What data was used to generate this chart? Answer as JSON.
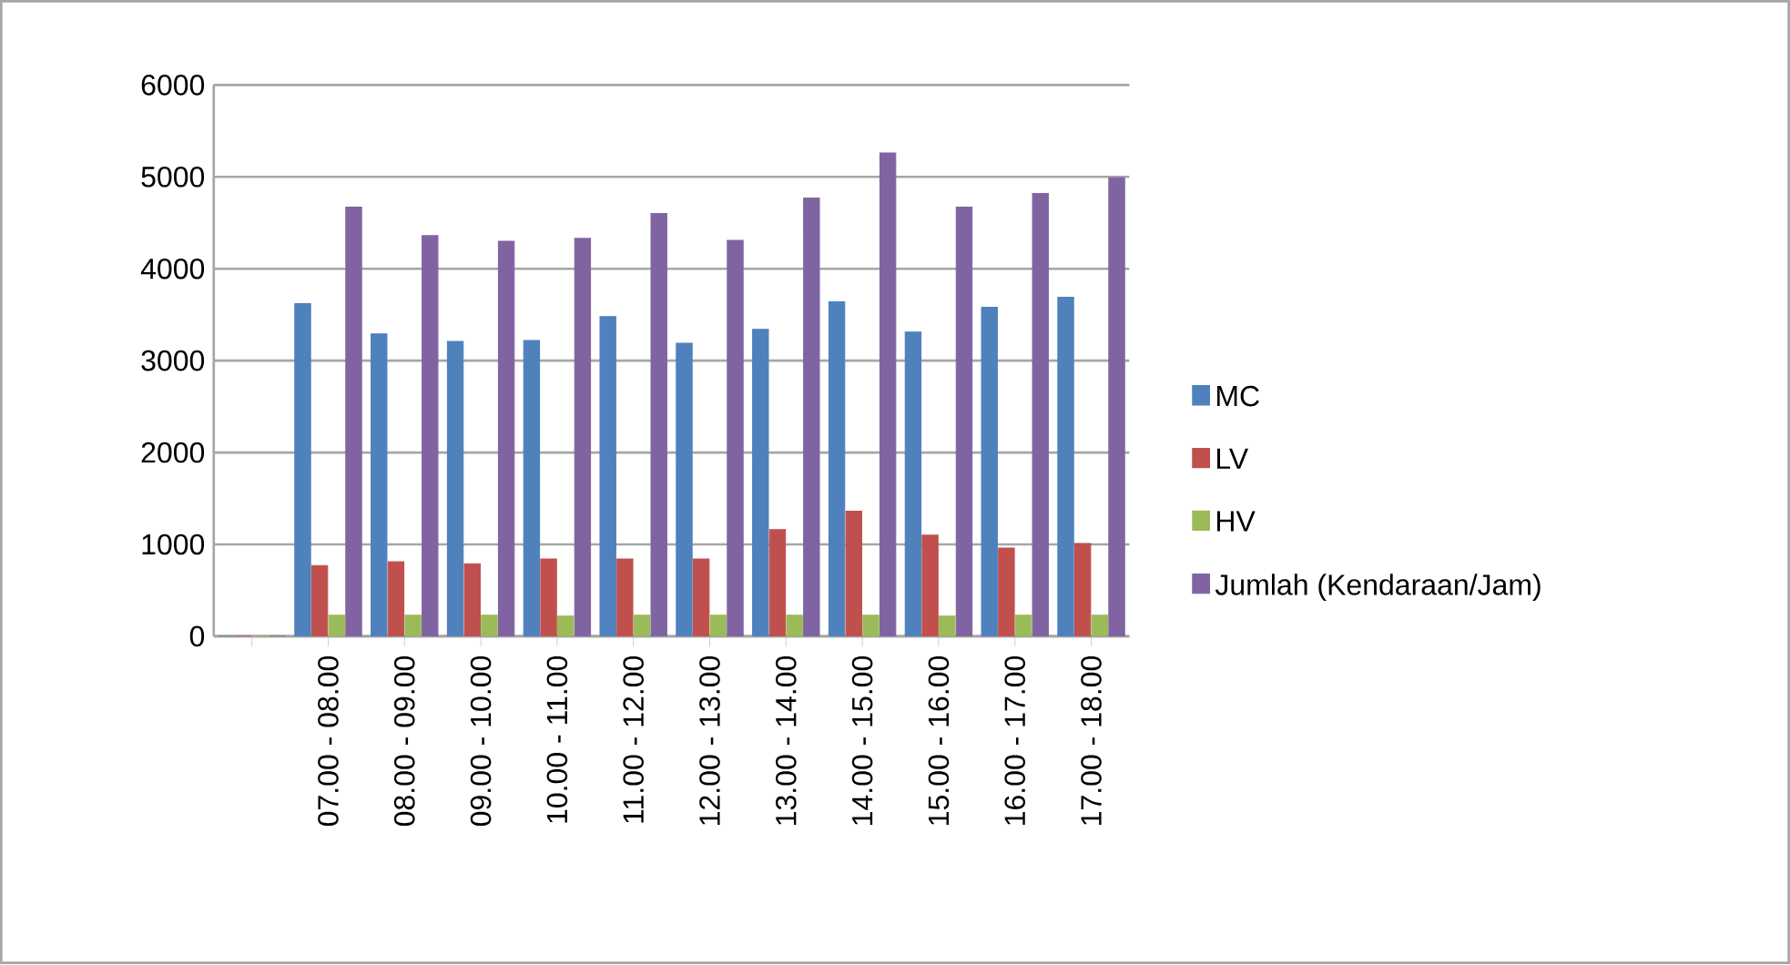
{
  "chart_data": {
    "type": "bar",
    "categories": [
      null,
      "07.00 - 08.00",
      "08.00 - 09.00",
      "09.00 - 10.00",
      "10.00 - 11.00",
      "11.00 - 12.00",
      "12.00 - 13.00",
      "13.00 - 14.00",
      "14.00 - 15.00",
      "15.00 - 16.00",
      "16.00 - 17.00",
      "17.00 - 18.00"
    ],
    "series": [
      {
        "name": "MC",
        "color": "#4f81bd",
        "values": [
          0,
          3620,
          3290,
          3210,
          3220,
          3480,
          3190,
          3340,
          3640,
          3310,
          3580,
          3690
        ]
      },
      {
        "name": "LV",
        "color": "#c0504d",
        "values": [
          0,
          770,
          810,
          790,
          840,
          840,
          840,
          1160,
          1360,
          1100,
          960,
          1010
        ]
      },
      {
        "name": "HV",
        "color": "#9bbb59",
        "values": [
          0,
          230,
          230,
          230,
          220,
          230,
          230,
          230,
          230,
          220,
          230,
          230
        ]
      },
      {
        "name": "Jumlah (Kendaraan/Jam)",
        "color": "#8064a2",
        "values": [
          0,
          4670,
          4360,
          4300,
          4330,
          4600,
          4310,
          4770,
          5260,
          4670,
          4820,
          4990
        ]
      }
    ],
    "ylim": [
      0,
      6000
    ],
    "yticks": [
      0,
      1000,
      2000,
      3000,
      4000,
      5000,
      6000
    ],
    "grid": "y",
    "legend": "right"
  }
}
